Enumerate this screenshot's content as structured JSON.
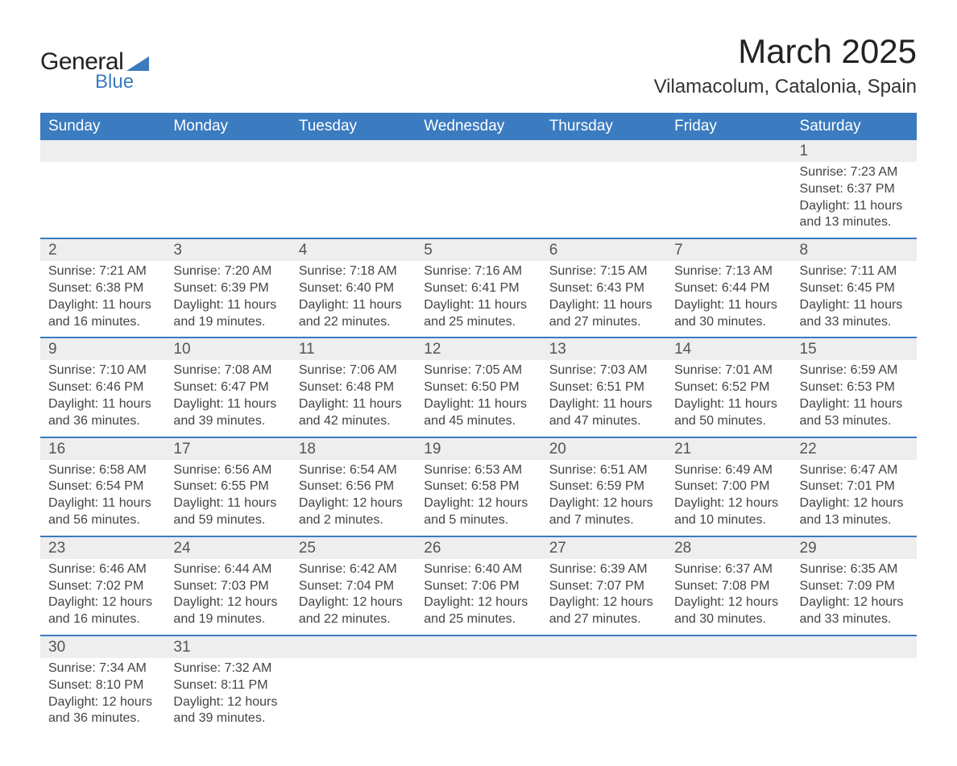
{
  "logo": {
    "text1": "General",
    "text2": "Blue"
  },
  "title": "March 2025",
  "subtitle": "Vilamacolum, Catalonia, Spain",
  "columns": [
    "Sunday",
    "Monday",
    "Tuesday",
    "Wednesday",
    "Thursday",
    "Friday",
    "Saturday"
  ],
  "colors": {
    "header_bg": "#3b7bbf",
    "header_text": "#ffffff",
    "daynum_bg": "#eeeeee",
    "border": "#3b7bbf",
    "body_text": "#444444",
    "title_text": "#222222"
  },
  "fonts": {
    "title_size_pt": 32,
    "subtitle_size_pt": 18,
    "header_size_pt": 14,
    "daynum_size_pt": 14,
    "detail_size_pt": 12
  },
  "weeks": [
    [
      null,
      null,
      null,
      null,
      null,
      null,
      {
        "n": "1",
        "sunrise": "Sunrise: 7:23 AM",
        "sunset": "Sunset: 6:37 PM",
        "day1": "Daylight: 11 hours",
        "day2": "and 13 minutes."
      }
    ],
    [
      {
        "n": "2",
        "sunrise": "Sunrise: 7:21 AM",
        "sunset": "Sunset: 6:38 PM",
        "day1": "Daylight: 11 hours",
        "day2": "and 16 minutes."
      },
      {
        "n": "3",
        "sunrise": "Sunrise: 7:20 AM",
        "sunset": "Sunset: 6:39 PM",
        "day1": "Daylight: 11 hours",
        "day2": "and 19 minutes."
      },
      {
        "n": "4",
        "sunrise": "Sunrise: 7:18 AM",
        "sunset": "Sunset: 6:40 PM",
        "day1": "Daylight: 11 hours",
        "day2": "and 22 minutes."
      },
      {
        "n": "5",
        "sunrise": "Sunrise: 7:16 AM",
        "sunset": "Sunset: 6:41 PM",
        "day1": "Daylight: 11 hours",
        "day2": "and 25 minutes."
      },
      {
        "n": "6",
        "sunrise": "Sunrise: 7:15 AM",
        "sunset": "Sunset: 6:43 PM",
        "day1": "Daylight: 11 hours",
        "day2": "and 27 minutes."
      },
      {
        "n": "7",
        "sunrise": "Sunrise: 7:13 AM",
        "sunset": "Sunset: 6:44 PM",
        "day1": "Daylight: 11 hours",
        "day2": "and 30 minutes."
      },
      {
        "n": "8",
        "sunrise": "Sunrise: 7:11 AM",
        "sunset": "Sunset: 6:45 PM",
        "day1": "Daylight: 11 hours",
        "day2": "and 33 minutes."
      }
    ],
    [
      {
        "n": "9",
        "sunrise": "Sunrise: 7:10 AM",
        "sunset": "Sunset: 6:46 PM",
        "day1": "Daylight: 11 hours",
        "day2": "and 36 minutes."
      },
      {
        "n": "10",
        "sunrise": "Sunrise: 7:08 AM",
        "sunset": "Sunset: 6:47 PM",
        "day1": "Daylight: 11 hours",
        "day2": "and 39 minutes."
      },
      {
        "n": "11",
        "sunrise": "Sunrise: 7:06 AM",
        "sunset": "Sunset: 6:48 PM",
        "day1": "Daylight: 11 hours",
        "day2": "and 42 minutes."
      },
      {
        "n": "12",
        "sunrise": "Sunrise: 7:05 AM",
        "sunset": "Sunset: 6:50 PM",
        "day1": "Daylight: 11 hours",
        "day2": "and 45 minutes."
      },
      {
        "n": "13",
        "sunrise": "Sunrise: 7:03 AM",
        "sunset": "Sunset: 6:51 PM",
        "day1": "Daylight: 11 hours",
        "day2": "and 47 minutes."
      },
      {
        "n": "14",
        "sunrise": "Sunrise: 7:01 AM",
        "sunset": "Sunset: 6:52 PM",
        "day1": "Daylight: 11 hours",
        "day2": "and 50 minutes."
      },
      {
        "n": "15",
        "sunrise": "Sunrise: 6:59 AM",
        "sunset": "Sunset: 6:53 PM",
        "day1": "Daylight: 11 hours",
        "day2": "and 53 minutes."
      }
    ],
    [
      {
        "n": "16",
        "sunrise": "Sunrise: 6:58 AM",
        "sunset": "Sunset: 6:54 PM",
        "day1": "Daylight: 11 hours",
        "day2": "and 56 minutes."
      },
      {
        "n": "17",
        "sunrise": "Sunrise: 6:56 AM",
        "sunset": "Sunset: 6:55 PM",
        "day1": "Daylight: 11 hours",
        "day2": "and 59 minutes."
      },
      {
        "n": "18",
        "sunrise": "Sunrise: 6:54 AM",
        "sunset": "Sunset: 6:56 PM",
        "day1": "Daylight: 12 hours",
        "day2": "and 2 minutes."
      },
      {
        "n": "19",
        "sunrise": "Sunrise: 6:53 AM",
        "sunset": "Sunset: 6:58 PM",
        "day1": "Daylight: 12 hours",
        "day2": "and 5 minutes."
      },
      {
        "n": "20",
        "sunrise": "Sunrise: 6:51 AM",
        "sunset": "Sunset: 6:59 PM",
        "day1": "Daylight: 12 hours",
        "day2": "and 7 minutes."
      },
      {
        "n": "21",
        "sunrise": "Sunrise: 6:49 AM",
        "sunset": "Sunset: 7:00 PM",
        "day1": "Daylight: 12 hours",
        "day2": "and 10 minutes."
      },
      {
        "n": "22",
        "sunrise": "Sunrise: 6:47 AM",
        "sunset": "Sunset: 7:01 PM",
        "day1": "Daylight: 12 hours",
        "day2": "and 13 minutes."
      }
    ],
    [
      {
        "n": "23",
        "sunrise": "Sunrise: 6:46 AM",
        "sunset": "Sunset: 7:02 PM",
        "day1": "Daylight: 12 hours",
        "day2": "and 16 minutes."
      },
      {
        "n": "24",
        "sunrise": "Sunrise: 6:44 AM",
        "sunset": "Sunset: 7:03 PM",
        "day1": "Daylight: 12 hours",
        "day2": "and 19 minutes."
      },
      {
        "n": "25",
        "sunrise": "Sunrise: 6:42 AM",
        "sunset": "Sunset: 7:04 PM",
        "day1": "Daylight: 12 hours",
        "day2": "and 22 minutes."
      },
      {
        "n": "26",
        "sunrise": "Sunrise: 6:40 AM",
        "sunset": "Sunset: 7:06 PM",
        "day1": "Daylight: 12 hours",
        "day2": "and 25 minutes."
      },
      {
        "n": "27",
        "sunrise": "Sunrise: 6:39 AM",
        "sunset": "Sunset: 7:07 PM",
        "day1": "Daylight: 12 hours",
        "day2": "and 27 minutes."
      },
      {
        "n": "28",
        "sunrise": "Sunrise: 6:37 AM",
        "sunset": "Sunset: 7:08 PM",
        "day1": "Daylight: 12 hours",
        "day2": "and 30 minutes."
      },
      {
        "n": "29",
        "sunrise": "Sunrise: 6:35 AM",
        "sunset": "Sunset: 7:09 PM",
        "day1": "Daylight: 12 hours",
        "day2": "and 33 minutes."
      }
    ],
    [
      {
        "n": "30",
        "sunrise": "Sunrise: 7:34 AM",
        "sunset": "Sunset: 8:10 PM",
        "day1": "Daylight: 12 hours",
        "day2": "and 36 minutes."
      },
      {
        "n": "31",
        "sunrise": "Sunrise: 7:32 AM",
        "sunset": "Sunset: 8:11 PM",
        "day1": "Daylight: 12 hours",
        "day2": "and 39 minutes."
      },
      null,
      null,
      null,
      null,
      null
    ]
  ]
}
